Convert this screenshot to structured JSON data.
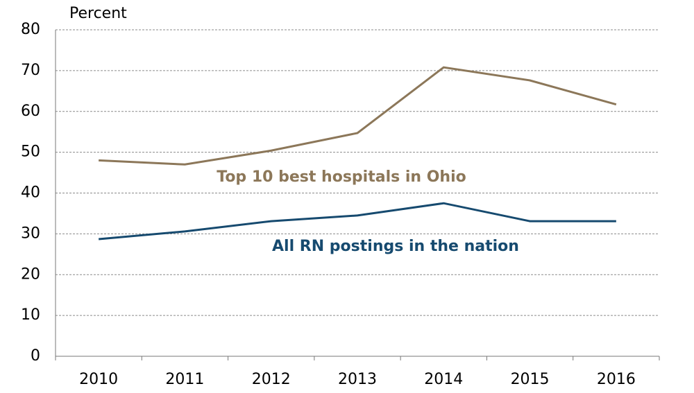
{
  "chart_data": {
    "type": "line",
    "y_axis_label": "Percent",
    "categories": [
      "2010",
      "2011",
      "2012",
      "2013",
      "2014",
      "2015",
      "2016"
    ],
    "series": [
      {
        "name": "Top 10 best hospitals in Ohio",
        "color": "#8c7759",
        "values": [
          48,
          47,
          50.4,
          54.7,
          70.8,
          67.6,
          61.7
        ]
      },
      {
        "name": "All RN postings in the nation",
        "color": "#164a6f",
        "values": [
          28.7,
          30.6,
          33.1,
          34.5,
          37.5,
          33.1,
          33.1
        ]
      }
    ],
    "ylim": [
      0,
      80
    ],
    "yticks": [
      0,
      10,
      20,
      30,
      40,
      50,
      60,
      70,
      80
    ],
    "grid": true
  }
}
